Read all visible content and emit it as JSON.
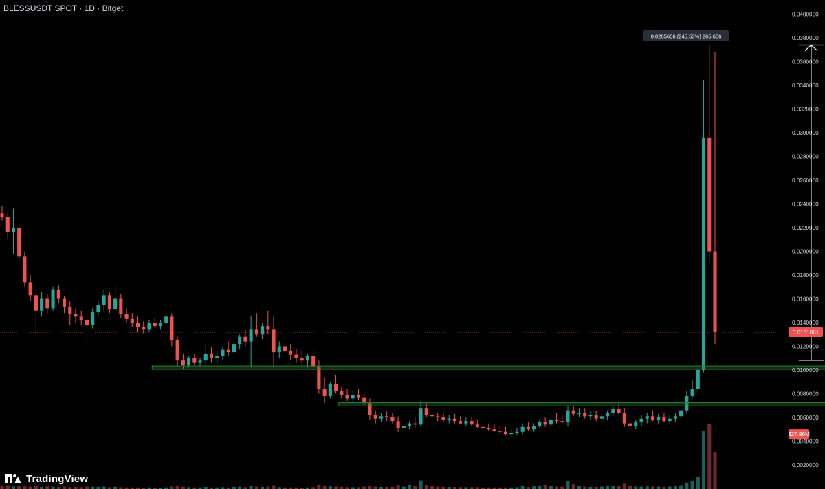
{
  "header": {
    "title": "BLESSUSDT SPOT · 1D · Bitget"
  },
  "branding": {
    "logo_text": "TradingView",
    "logo_icon": "tradingview-logo-icon"
  },
  "colors": {
    "up": "#26a69a",
    "down": "#ef5350",
    "support": "#2e7d32",
    "measure": "#ffffff",
    "background": "#000000"
  },
  "chart_data": {
    "type": "candlestick",
    "title": "BLESSUSDT SPOT · 1D · Bitget",
    "y_axis": {
      "position": "right",
      "range": [
        0.0,
        0.04
      ],
      "ticks": [
        "0.0020000",
        "0.0040000",
        "0.0060000",
        "0.0080000",
        "0.0100000",
        "0.0120000",
        "0.0140000",
        "0.0160000",
        "0.0180000",
        "0.0200000",
        "0.0220000",
        "0.0240000",
        "0.0260000",
        "0.0280000",
        "0.0300000",
        "0.0320000",
        "0.0340000",
        "0.0360000",
        "0.0380000",
        "0.0400000"
      ]
    },
    "grid": false,
    "last_price": {
      "value": 0.0131861,
      "label": "0.0131861"
    },
    "volume_label": {
      "label": "327.96M",
      "value": 0.0046
    },
    "support_levels": [
      {
        "value": 0.0102,
        "from_index": 27,
        "to_index": 156
      },
      {
        "value": 0.0071,
        "from_index": 60,
        "to_index": 151
      }
    ],
    "measure": {
      "label": "0.0265606 (245.53%) 265,606",
      "index": 143,
      "from": 0.01082,
      "to": 0.03739
    },
    "candles": [
      [
        0.0232,
        0.0238,
        0.0226,
        0.0229
      ],
      [
        0.0229,
        0.0233,
        0.021,
        0.0216
      ],
      [
        0.0216,
        0.0236,
        0.0198,
        0.022
      ],
      [
        0.022,
        0.0222,
        0.0192,
        0.0196
      ],
      [
        0.0196,
        0.02,
        0.017,
        0.0174
      ],
      [
        0.0174,
        0.018,
        0.0158,
        0.0163
      ],
      [
        0.0163,
        0.0168,
        0.013,
        0.015
      ],
      [
        0.015,
        0.0166,
        0.0145,
        0.016
      ],
      [
        0.016,
        0.0164,
        0.0148,
        0.0152
      ],
      [
        0.0152,
        0.017,
        0.015,
        0.0168
      ],
      [
        0.0168,
        0.0172,
        0.0156,
        0.016
      ],
      [
        0.016,
        0.0162,
        0.0148,
        0.0153
      ],
      [
        0.0153,
        0.0158,
        0.0138,
        0.0147
      ],
      [
        0.0147,
        0.0152,
        0.014,
        0.0145
      ],
      [
        0.0145,
        0.015,
        0.0138,
        0.0142
      ],
      [
        0.0142,
        0.0148,
        0.0122,
        0.0138
      ],
      [
        0.0138,
        0.0152,
        0.0135,
        0.0149
      ],
      [
        0.0149,
        0.0158,
        0.0146,
        0.0155
      ],
      [
        0.0155,
        0.0168,
        0.015,
        0.0163
      ],
      [
        0.0163,
        0.0166,
        0.0148,
        0.0151
      ],
      [
        0.0151,
        0.0172,
        0.0148,
        0.016
      ],
      [
        0.016,
        0.0164,
        0.0144,
        0.0147
      ],
      [
        0.0147,
        0.0152,
        0.014,
        0.0143
      ],
      [
        0.0143,
        0.0148,
        0.0136,
        0.014
      ],
      [
        0.014,
        0.0145,
        0.0132,
        0.0136
      ],
      [
        0.0136,
        0.0141,
        0.0131,
        0.0134
      ],
      [
        0.0134,
        0.0142,
        0.0132,
        0.014
      ],
      [
        0.014,
        0.0144,
        0.0135,
        0.0137
      ],
      [
        0.0137,
        0.0142,
        0.0134,
        0.014
      ],
      [
        0.014,
        0.0148,
        0.0138,
        0.0145
      ],
      [
        0.0145,
        0.0148,
        0.012,
        0.0125
      ],
      [
        0.0125,
        0.0128,
        0.0103,
        0.0108
      ],
      [
        0.0108,
        0.0114,
        0.0101,
        0.0104
      ],
      [
        0.0104,
        0.0112,
        0.0102,
        0.011
      ],
      [
        0.011,
        0.0114,
        0.0104,
        0.0106
      ],
      [
        0.0106,
        0.011,
        0.0103,
        0.0108
      ],
      [
        0.0108,
        0.0122,
        0.0104,
        0.0114
      ],
      [
        0.0114,
        0.0119,
        0.0106,
        0.011
      ],
      [
        0.011,
        0.0116,
        0.0105,
        0.0112
      ],
      [
        0.0112,
        0.012,
        0.0108,
        0.0117
      ],
      [
        0.0117,
        0.0124,
        0.0112,
        0.0115
      ],
      [
        0.0115,
        0.0126,
        0.0112,
        0.0122
      ],
      [
        0.0122,
        0.013,
        0.0118,
        0.0128
      ],
      [
        0.0128,
        0.0134,
        0.012,
        0.0124
      ],
      [
        0.0124,
        0.0146,
        0.0102,
        0.0134
      ],
      [
        0.0134,
        0.0148,
        0.0128,
        0.013
      ],
      [
        0.013,
        0.014,
        0.0126,
        0.0137
      ],
      [
        0.0137,
        0.015,
        0.013,
        0.0134
      ],
      [
        0.0134,
        0.0146,
        0.0102,
        0.0115
      ],
      [
        0.0115,
        0.0124,
        0.011,
        0.012
      ],
      [
        0.012,
        0.0126,
        0.0112,
        0.0116
      ],
      [
        0.0116,
        0.0122,
        0.0108,
        0.0113
      ],
      [
        0.0113,
        0.0118,
        0.0106,
        0.011
      ],
      [
        0.011,
        0.0116,
        0.0104,
        0.0108
      ],
      [
        0.0108,
        0.0114,
        0.0102,
        0.0112
      ],
      [
        0.0112,
        0.0116,
        0.01,
        0.0103
      ],
      [
        0.0103,
        0.0108,
        0.008,
        0.0084
      ],
      [
        0.0084,
        0.0094,
        0.0072,
        0.0078
      ],
      [
        0.0078,
        0.009,
        0.0076,
        0.0088
      ],
      [
        0.0088,
        0.0096,
        0.008,
        0.0082
      ],
      [
        0.0082,
        0.0086,
        0.0076,
        0.0079
      ],
      [
        0.0079,
        0.0084,
        0.0074,
        0.0076
      ],
      [
        0.0076,
        0.0082,
        0.0073,
        0.0079
      ],
      [
        0.0079,
        0.0084,
        0.0075,
        0.0077
      ],
      [
        0.0077,
        0.0081,
        0.007,
        0.0072
      ],
      [
        0.0072,
        0.0076,
        0.0058,
        0.0062
      ],
      [
        0.0062,
        0.0066,
        0.0055,
        0.0059
      ],
      [
        0.0059,
        0.0064,
        0.0056,
        0.0061
      ],
      [
        0.0061,
        0.0065,
        0.0057,
        0.006
      ],
      [
        0.006,
        0.0064,
        0.0055,
        0.0057
      ],
      [
        0.0057,
        0.0061,
        0.0048,
        0.0051
      ],
      [
        0.0051,
        0.0055,
        0.0048,
        0.0053
      ],
      [
        0.0053,
        0.0057,
        0.005,
        0.0055
      ],
      [
        0.0055,
        0.006,
        0.0051,
        0.0054
      ],
      [
        0.0054,
        0.0074,
        0.0052,
        0.0068
      ],
      [
        0.0068,
        0.0072,
        0.006,
        0.0062
      ],
      [
        0.0062,
        0.0066,
        0.0058,
        0.0061
      ],
      [
        0.0061,
        0.0064,
        0.0057,
        0.006
      ],
      [
        0.006,
        0.0064,
        0.0056,
        0.0058
      ],
      [
        0.0058,
        0.0062,
        0.0055,
        0.0059
      ],
      [
        0.0059,
        0.0063,
        0.0055,
        0.0057
      ],
      [
        0.0057,
        0.0061,
        0.0054,
        0.0055
      ],
      [
        0.0055,
        0.006,
        0.0053,
        0.0057
      ],
      [
        0.0057,
        0.006,
        0.0053,
        0.0054
      ],
      [
        0.0054,
        0.0058,
        0.0051,
        0.0052
      ],
      [
        0.0052,
        0.0056,
        0.005,
        0.0051
      ],
      [
        0.0051,
        0.0055,
        0.0049,
        0.005
      ],
      [
        0.005,
        0.0054,
        0.0048,
        0.0049
      ],
      [
        0.0049,
        0.0053,
        0.0046,
        0.0048
      ],
      [
        0.0048,
        0.0052,
        0.0045,
        0.0046
      ],
      [
        0.0046,
        0.005,
        0.0044,
        0.0047
      ],
      [
        0.0047,
        0.0051,
        0.0045,
        0.0048
      ],
      [
        0.0048,
        0.0055,
        0.0046,
        0.0052
      ],
      [
        0.0052,
        0.0056,
        0.0049,
        0.005
      ],
      [
        0.005,
        0.0055,
        0.0048,
        0.0053
      ],
      [
        0.0053,
        0.0058,
        0.0051,
        0.0056
      ],
      [
        0.0056,
        0.006,
        0.0052,
        0.0054
      ],
      [
        0.0054,
        0.006,
        0.0052,
        0.0058
      ],
      [
        0.0058,
        0.0064,
        0.0055,
        0.0057
      ],
      [
        0.0057,
        0.0062,
        0.0054,
        0.0056
      ],
      [
        0.0056,
        0.007,
        0.0053,
        0.0066
      ],
      [
        0.0066,
        0.007,
        0.0061,
        0.0063
      ],
      [
        0.0063,
        0.0068,
        0.006,
        0.0064
      ],
      [
        0.0064,
        0.0068,
        0.0059,
        0.0061
      ],
      [
        0.0061,
        0.0066,
        0.0058,
        0.0062
      ],
      [
        0.0062,
        0.0066,
        0.0057,
        0.0059
      ],
      [
        0.0059,
        0.0064,
        0.0056,
        0.0061
      ],
      [
        0.0061,
        0.0066,
        0.0058,
        0.0064
      ],
      [
        0.0064,
        0.0069,
        0.0061,
        0.0067
      ],
      [
        0.0067,
        0.0072,
        0.0062,
        0.0064
      ],
      [
        0.0064,
        0.0068,
        0.0052,
        0.0055
      ],
      [
        0.0055,
        0.006,
        0.005,
        0.0053
      ],
      [
        0.0053,
        0.0058,
        0.005,
        0.0056
      ],
      [
        0.0056,
        0.0062,
        0.0053,
        0.0059
      ],
      [
        0.0059,
        0.0064,
        0.0055,
        0.0061
      ],
      [
        0.0061,
        0.0066,
        0.0057,
        0.0058
      ],
      [
        0.0058,
        0.0063,
        0.0055,
        0.006
      ],
      [
        0.006,
        0.0064,
        0.0056,
        0.0057
      ],
      [
        0.0057,
        0.0062,
        0.0055,
        0.0059
      ],
      [
        0.0059,
        0.0064,
        0.0056,
        0.0061
      ],
      [
        0.0061,
        0.0068,
        0.0059,
        0.0066
      ],
      [
        0.0066,
        0.0082,
        0.0064,
        0.0078
      ],
      [
        0.0078,
        0.0092,
        0.0076,
        0.0084
      ],
      [
        0.0084,
        0.0104,
        0.008,
        0.01
      ],
      [
        0.01,
        0.0344,
        0.0098,
        0.0296
      ],
      [
        0.0296,
        0.0374,
        0.019,
        0.02
      ],
      [
        0.02,
        0.0368,
        0.0122,
        0.0132
      ]
    ],
    "volumes": [
      1.2,
      1.4,
      1.0,
      1.2,
      1.0,
      0.9,
      1.1,
      0.8,
      1.0,
      0.9,
      0.8,
      0.9,
      0.7,
      0.8,
      0.7,
      0.9,
      0.8,
      0.8,
      0.9,
      0.7,
      0.8,
      0.7,
      0.6,
      0.6,
      0.6,
      0.5,
      0.6,
      0.5,
      0.5,
      0.6,
      0.9,
      1.2,
      0.9,
      0.7,
      0.6,
      0.6,
      0.8,
      0.6,
      0.6,
      0.7,
      0.6,
      0.8,
      0.9,
      0.7,
      1.3,
      0.9,
      0.8,
      0.9,
      1.4,
      0.7,
      0.6,
      0.6,
      0.6,
      0.5,
      0.6,
      0.7,
      1.6,
      1.3,
      1.0,
      0.9,
      0.8,
      0.7,
      0.7,
      0.7,
      0.9,
      1.2,
      0.9,
      0.8,
      0.8,
      0.8,
      1.5,
      0.9,
      1.6,
      1.2,
      3.2,
      1.5,
      1.0,
      0.9,
      0.8,
      0.8,
      0.8,
      0.7,
      0.7,
      0.7,
      0.7,
      0.6,
      0.6,
      0.6,
      0.6,
      0.6,
      0.6,
      0.7,
      1.2,
      0.8,
      1.0,
      1.3,
      1.6,
      1.2,
      0.9,
      0.9,
      3.0,
      1.8,
      1.2,
      0.9,
      0.8,
      0.8,
      0.9,
      1.1,
      1.3,
      1.2,
      2.0,
      1.3,
      0.9,
      0.9,
      1.0,
      0.9,
      0.9,
      0.8,
      0.9,
      1.0,
      1.4,
      2.4,
      3.0,
      4.6,
      22.0,
      24.5,
      14.0
    ],
    "volume_max": 24.5
  }
}
